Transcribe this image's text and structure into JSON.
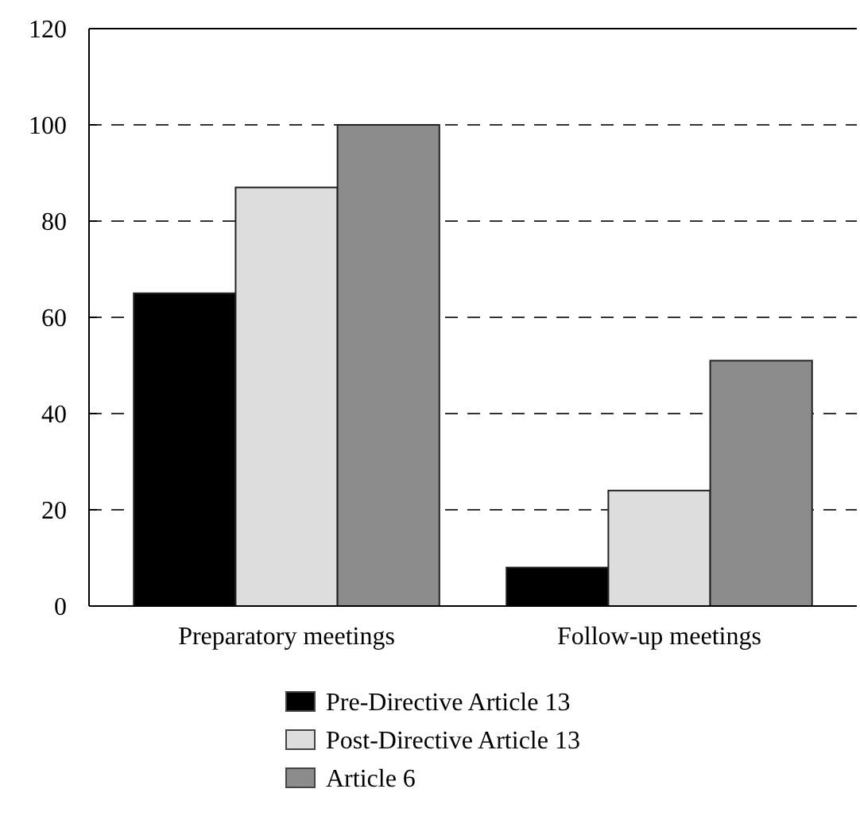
{
  "chart_data": {
    "type": "bar",
    "categories": [
      "Preparatory meetings",
      "Follow-up meetings"
    ],
    "series": [
      {
        "name": "Pre-Directive Article 13",
        "color": "#000000",
        "values": [
          65,
          8
        ]
      },
      {
        "name": "Post-Directive Article 13",
        "color": "#dddddd",
        "values": [
          87,
          24
        ]
      },
      {
        "name": "Article 6",
        "color": "#8c8c8c",
        "values": [
          100,
          51
        ]
      }
    ],
    "ylim": [
      0,
      120
    ],
    "yticks": [
      0,
      20,
      40,
      60,
      80,
      100,
      120
    ],
    "grid": "y",
    "line_style": "dashed",
    "legend": "bottom"
  }
}
